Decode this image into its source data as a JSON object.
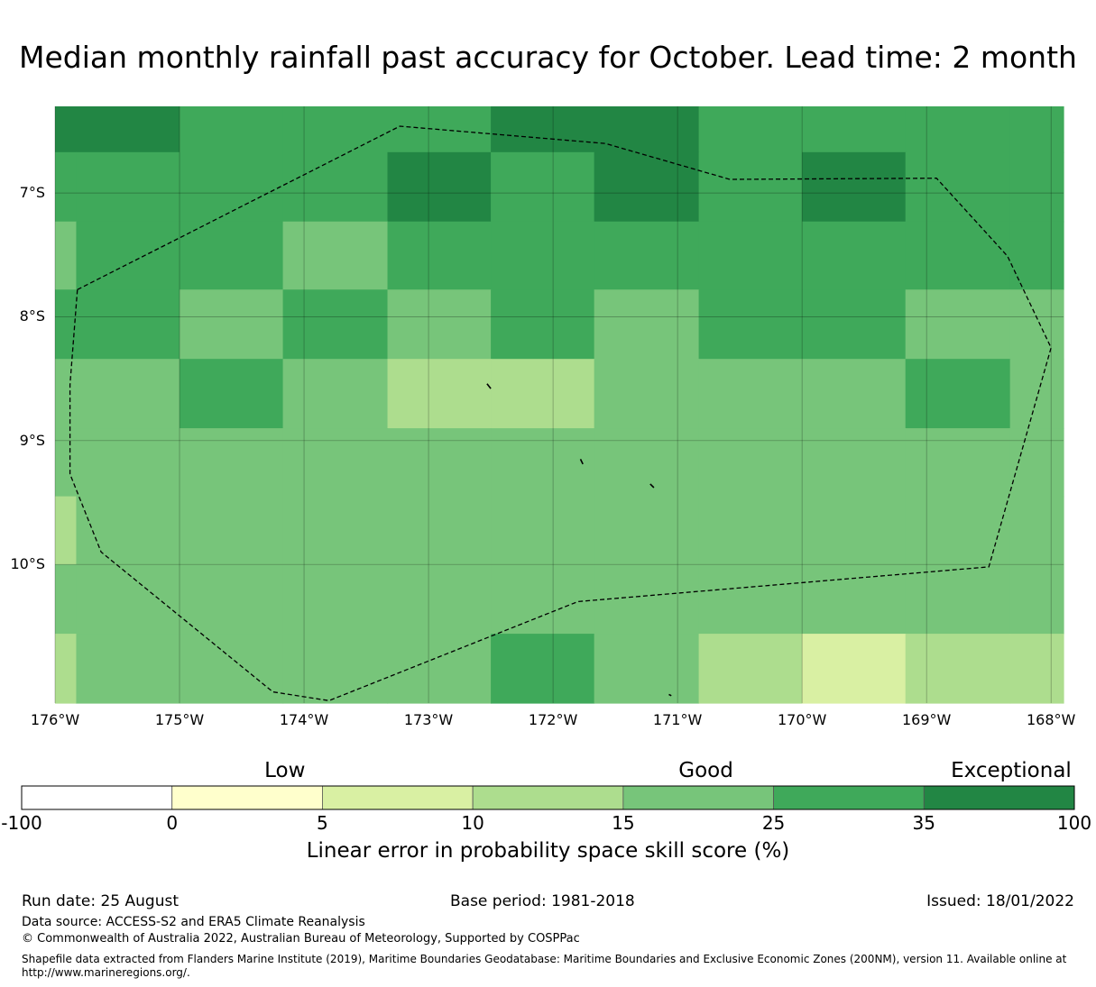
{
  "title": "Median monthly rainfall past accuracy for October. Lead time: 2 month",
  "map": {
    "lon_range": [
      -176,
      -167.9
    ],
    "lat_range": [
      -11.12,
      -6.3
    ],
    "lon_ticks": [
      {
        "value": -176,
        "label": "176°W"
      },
      {
        "value": -175,
        "label": "175°W"
      },
      {
        "value": -174,
        "label": "174°W"
      },
      {
        "value": -173,
        "label": "173°W"
      },
      {
        "value": -172,
        "label": "172°W"
      },
      {
        "value": -171,
        "label": "171°W"
      },
      {
        "value": -170,
        "label": "170°W"
      },
      {
        "value": -169,
        "label": "169°W"
      },
      {
        "value": -168,
        "label": "168°W"
      }
    ],
    "lat_ticks": [
      {
        "value": -7,
        "label": "7°S"
      },
      {
        "value": -8,
        "label": "8°S"
      },
      {
        "value": -9,
        "label": "9°S"
      },
      {
        "value": -10,
        "label": "10°S"
      }
    ],
    "grid_lines": true,
    "cell_cols_lon": [
      -176,
      -175.83,
      -175,
      -174.17,
      -173.33,
      -172.5,
      -171.67,
      -170.83,
      -170,
      -169.17,
      -168.33,
      -167.9
    ],
    "cell_rows_lat": [
      -6.3,
      -6.67,
      -7.23,
      -7.78,
      -8.34,
      -8.9,
      -9.45,
      -10.0,
      -10.56,
      -11.12
    ],
    "cell_colors": [
      [
        "#228644",
        "#228644",
        "#3fa95a",
        "#3fa95a",
        "#3fa95a",
        "#228644",
        "#228644",
        "#3fa95a",
        "#3fa95a",
        "#3fa95a",
        "#3fa95a"
      ],
      [
        "#3fa95a",
        "#3fa95a",
        "#3fa95a",
        "#3fa95a",
        "#228644",
        "#3fa95a",
        "#228644",
        "#3fa95a",
        "#228644",
        "#3fa95a",
        "#3fa95a"
      ],
      [
        "#77c57a",
        "#3fa95a",
        "#3fa95a",
        "#77c57a",
        "#3fa95a",
        "#3fa95a",
        "#3fa95a",
        "#3fa95a",
        "#3fa95a",
        "#3fa95a",
        "#3fa95a"
      ],
      [
        "#3fa95a",
        "#3fa95a",
        "#77c57a",
        "#3fa95a",
        "#77c57a",
        "#3fa95a",
        "#77c57a",
        "#3fa95a",
        "#3fa95a",
        "#77c57a",
        "#77c57a"
      ],
      [
        "#77c57a",
        "#77c57a",
        "#3fa95a",
        "#77c57a",
        "#addd8e",
        "#addd8e",
        "#77c57a",
        "#77c57a",
        "#77c57a",
        "#3fa95a",
        "#77c57a"
      ],
      [
        "#77c57a",
        "#77c57a",
        "#77c57a",
        "#77c57a",
        "#77c57a",
        "#77c57a",
        "#77c57a",
        "#77c57a",
        "#77c57a",
        "#77c57a",
        "#77c57a"
      ],
      [
        "#addd8e",
        "#77c57a",
        "#77c57a",
        "#77c57a",
        "#77c57a",
        "#77c57a",
        "#77c57a",
        "#77c57a",
        "#77c57a",
        "#77c57a",
        "#77c57a"
      ],
      [
        "#77c57a",
        "#77c57a",
        "#77c57a",
        "#77c57a",
        "#77c57a",
        "#77c57a",
        "#77c57a",
        "#77c57a",
        "#77c57a",
        "#77c57a",
        "#77c57a"
      ],
      [
        "#addd8e",
        "#77c57a",
        "#77c57a",
        "#77c57a",
        "#77c57a",
        "#3fa95a",
        "#77c57a",
        "#addd8e",
        "#d9f0a3",
        "#addd8e",
        "#addd8e"
      ]
    ],
    "eez_boundary": [
      [
        -175.82,
        -7.78
      ],
      [
        -173.23,
        -6.46
      ],
      [
        -171.58,
        -6.6
      ],
      [
        -170.58,
        -6.89
      ],
      [
        -168.92,
        -6.88
      ],
      [
        -168.35,
        -7.51
      ],
      [
        -168.0,
        -8.25
      ],
      [
        -168.5,
        -10.02
      ],
      [
        -171.8,
        -10.3
      ],
      [
        -173.8,
        -11.1
      ],
      [
        -174.25,
        -11.03
      ],
      [
        -175.63,
        -9.9
      ],
      [
        -175.88,
        -9.27
      ],
      [
        -175.88,
        -8.55
      ],
      [
        -175.82,
        -7.78
      ]
    ],
    "islands": [
      [
        [
          -172.53,
          -8.54
        ],
        [
          -172.5,
          -8.58
        ]
      ],
      [
        [
          -171.78,
          -9.15
        ],
        [
          -171.76,
          -9.19
        ]
      ],
      [
        [
          -171.22,
          -9.35
        ],
        [
          -171.19,
          -9.38
        ]
      ],
      [
        [
          -171.07,
          -11.05
        ],
        [
          -171.05,
          -11.06
        ]
      ]
    ]
  },
  "colorbar": {
    "categories": [
      {
        "label": "Low",
        "center": 2.5
      },
      {
        "label": "Good",
        "center": 6.5
      },
      {
        "label": "Exceptional",
        "center": 9.4
      }
    ],
    "ticks": [
      "-100",
      "0",
      "5",
      "10",
      "15",
      "25",
      "35",
      "100"
    ],
    "colors": [
      "#ffffff",
      "#ffffcc",
      "#d9f0a3",
      "#addd8e",
      "#77c57a",
      "#3fa95a",
      "#228644"
    ],
    "label": "Linear error in probability space skill score (%)"
  },
  "footer": {
    "run_date": "Run date: 25 August",
    "base_period": "Base period: 1981-2018",
    "issued": "Issued: 18/01/2022",
    "data_source": "Data source: ACCESS-S2 and ERA5 Climate Reanalysis",
    "copyright": "© Commonwealth of Australia 2022, Australian Bureau of Meteorology, Supported by COSPPac",
    "shapefile_line1": "Shapefile data extracted from Flanders Marine Institute (2019), Maritime Boundaries Geodatabase: Maritime Boundaries and Exclusive Economic Zones (200NM), version 11. Available online at",
    "shapefile_line2": "http://www.marineregions.org/."
  }
}
